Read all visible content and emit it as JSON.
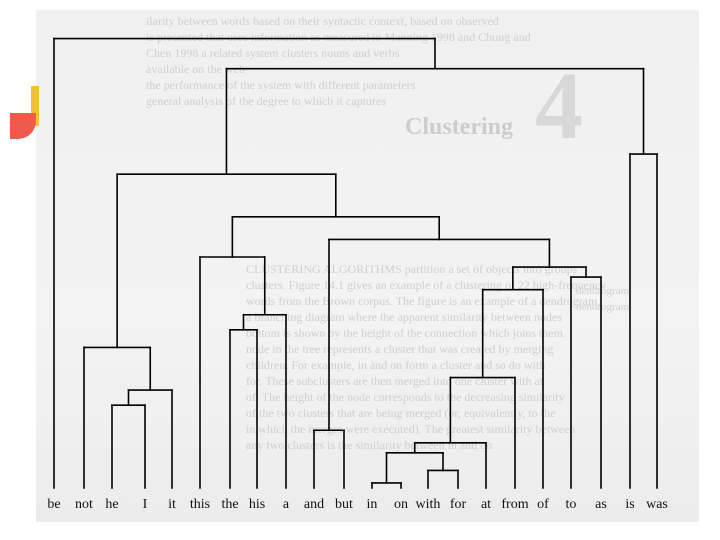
{
  "background_page": {
    "chapter_number": "4",
    "chapter_title": "Clustering",
    "text_lines_top": [
      "ilarity between words based on their syntactic context, based on observed",
      "is presented that uses information as measured in Manning 1998 and Chung and",
      "Chen 1998 a related system clusters nouns and verbs",
      "available on the web",
      "the performance of the system with different parameters",
      "general analysis of the degree to which it captures"
    ],
    "text_lines_body": [
      "CLUSTERING ALGORITHMS partition a set of objects into groups",
      "clusters. Figure 14.1 gives an example of a clustering of 22 high-frequency",
      "words from the Brown corpus. The figure is an example of a dendrogram,",
      "a branching diagram where the apparent similarity between nodes",
      "bottom is shown by the height of the connection which joins them.",
      "node in the tree represents a cluster that was created by merging",
      "children. For example, in and on form a cluster and so do with",
      "for. These subclusters are then merged into one cluster with at",
      "of. The height of the node corresponds to the decreasing similarity",
      "of the two clusters that are being merged (or, equivalently, to the",
      "in which the merges were executed). The greatest similarity between",
      "any two clusters is the similarity between in and on"
    ],
    "margin_labels": [
      "dendrogram",
      "dendrogram"
    ]
  },
  "dendrogram": {
    "leaves": [
      "be",
      "not",
      "he",
      "I",
      "it",
      "this",
      "the",
      "his",
      "a",
      "and",
      "but",
      "in",
      "on",
      "with",
      "for",
      "at",
      "from",
      "of",
      "to",
      "as",
      "is",
      "was"
    ],
    "merges": [
      {
        "a": 11,
        "b": 12,
        "level": 0.92
      },
      {
        "a": 13,
        "b": 14,
        "level": 0.87
      },
      {
        "a": "m0",
        "b": "m1",
        "level": 0.8
      },
      {
        "a": "m2",
        "b": 15,
        "level": 0.76
      },
      {
        "a": 9,
        "b": 10,
        "level": 0.71
      },
      {
        "a": "m3",
        "b": 16,
        "level": 0.5
      },
      {
        "a": 2,
        "b": 3,
        "level": 0.61
      },
      {
        "a": "m6",
        "b": 4,
        "level": 0.55
      },
      {
        "a": 1,
        "b": "m7",
        "level": 0.38
      },
      {
        "a": 6,
        "b": 7,
        "level": 0.31
      },
      {
        "a": "m9",
        "b": 8,
        "level": 0.25
      },
      {
        "a": "m5",
        "b": 17,
        "level": 0.15
      },
      {
        "a": 18,
        "b": 19,
        "level": 0.1
      },
      {
        "a": "m11",
        "b": "m12",
        "level": 0.06
      },
      {
        "a": 5,
        "b": "m10",
        "level": 0.02
      },
      {
        "a": "m4",
        "b": "m13",
        "level": -0.05
      },
      {
        "a": "m14",
        "b": "m15",
        "level": -0.14
      },
      {
        "a": "m8",
        "b": "m16",
        "level": -0.31
      },
      {
        "a": 20,
        "b": 21,
        "level": -0.39
      },
      {
        "a": "m17",
        "b": "m18",
        "level": -0.73
      },
      {
        "a": 0,
        "b": "m19",
        "level": -0.85
      }
    ]
  }
}
